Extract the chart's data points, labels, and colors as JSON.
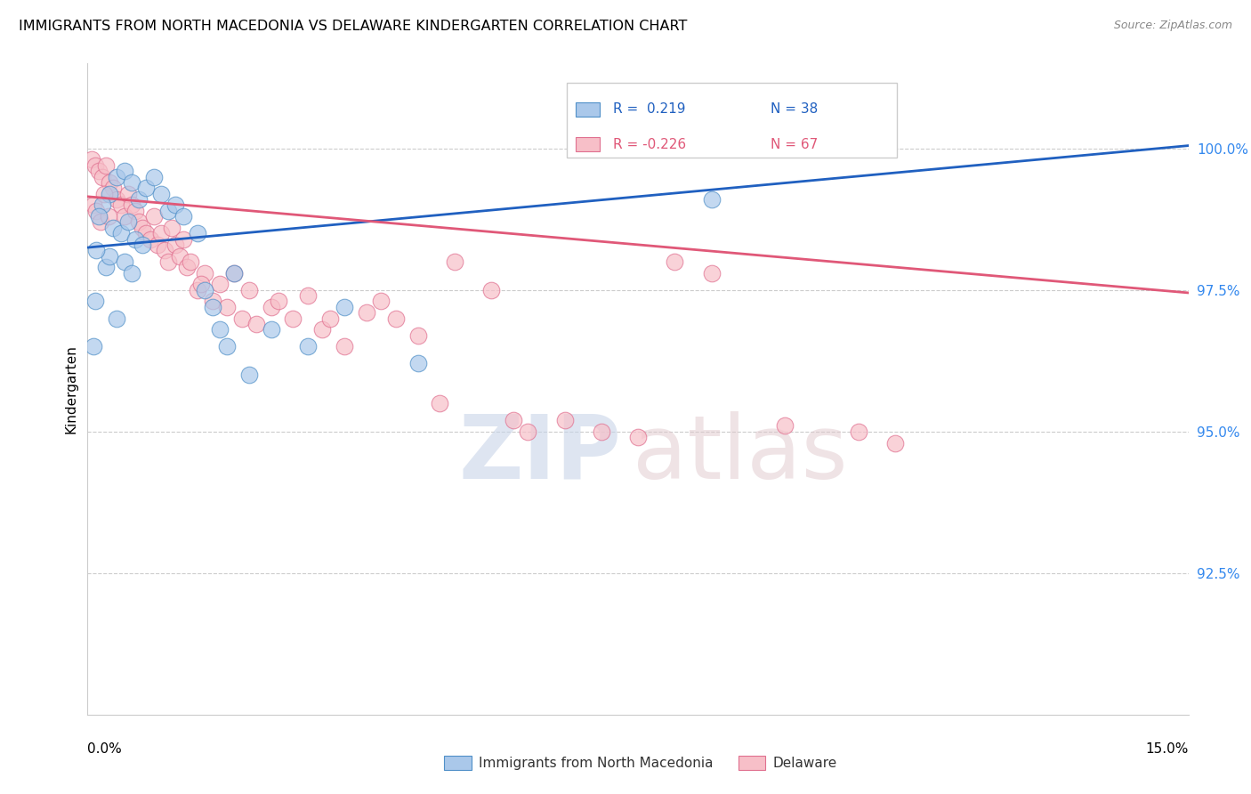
{
  "title": "IMMIGRANTS FROM NORTH MACEDONIA VS DELAWARE KINDERGARTEN CORRELATION CHART",
  "source": "Source: ZipAtlas.com",
  "ylabel": "Kindergarten",
  "xmin": 0.0,
  "xmax": 15.0,
  "ymin": 90.0,
  "ymax": 101.5,
  "yticks": [
    92.5,
    95.0,
    97.5,
    100.0
  ],
  "ytick_labels": [
    "92.5%",
    "95.0%",
    "97.5%",
    "100.0%"
  ],
  "legend_r_blue": "R =  0.219",
  "legend_n_blue": "N = 38",
  "legend_r_pink": "R = -0.226",
  "legend_n_pink": "N = 67",
  "legend_label_blue": "Immigrants from North Macedonia",
  "legend_label_pink": "Delaware",
  "blue_color": "#aac8ea",
  "pink_color": "#f7bfc8",
  "blue_edge_color": "#5090c8",
  "pink_edge_color": "#e07090",
  "blue_line_color": "#2060c0",
  "pink_line_color": "#e05878",
  "blue_scatter": [
    [
      0.3,
      99.2
    ],
    [
      0.4,
      99.5
    ],
    [
      0.5,
      99.6
    ],
    [
      0.6,
      99.4
    ],
    [
      0.7,
      99.1
    ],
    [
      0.8,
      99.3
    ],
    [
      0.9,
      99.5
    ],
    [
      1.0,
      99.2
    ],
    [
      1.1,
      98.9
    ],
    [
      1.2,
      99.0
    ],
    [
      0.2,
      99.0
    ],
    [
      0.15,
      98.8
    ],
    [
      0.35,
      98.6
    ],
    [
      0.45,
      98.5
    ],
    [
      0.55,
      98.7
    ],
    [
      0.65,
      98.4
    ],
    [
      0.75,
      98.3
    ],
    [
      0.25,
      97.9
    ],
    [
      0.3,
      98.1
    ],
    [
      0.5,
      98.0
    ],
    [
      0.6,
      97.8
    ],
    [
      1.3,
      98.8
    ],
    [
      1.5,
      98.5
    ],
    [
      1.6,
      97.5
    ],
    [
      1.7,
      97.2
    ],
    [
      2.0,
      97.8
    ],
    [
      2.5,
      96.8
    ],
    [
      3.0,
      96.5
    ],
    [
      3.5,
      97.2
    ],
    [
      0.1,
      97.3
    ],
    [
      0.08,
      96.5
    ],
    [
      1.8,
      96.8
    ],
    [
      1.9,
      96.5
    ],
    [
      2.2,
      96.0
    ],
    [
      4.5,
      96.2
    ],
    [
      8.5,
      99.1
    ],
    [
      0.12,
      98.2
    ],
    [
      0.4,
      97.0
    ]
  ],
  "pink_scatter": [
    [
      0.05,
      99.8
    ],
    [
      0.1,
      99.7
    ],
    [
      0.15,
      99.6
    ],
    [
      0.2,
      99.5
    ],
    [
      0.25,
      99.7
    ],
    [
      0.3,
      99.4
    ],
    [
      0.35,
      99.3
    ],
    [
      0.4,
      99.1
    ],
    [
      0.45,
      99.0
    ],
    [
      0.5,
      98.8
    ],
    [
      0.55,
      99.2
    ],
    [
      0.6,
      99.0
    ],
    [
      0.65,
      98.9
    ],
    [
      0.7,
      98.7
    ],
    [
      0.75,
      98.6
    ],
    [
      0.8,
      98.5
    ],
    [
      0.85,
      98.4
    ],
    [
      0.9,
      98.8
    ],
    [
      0.95,
      98.3
    ],
    [
      1.0,
      98.5
    ],
    [
      1.05,
      98.2
    ],
    [
      1.1,
      98.0
    ],
    [
      1.15,
      98.6
    ],
    [
      1.2,
      98.3
    ],
    [
      1.25,
      98.1
    ],
    [
      1.3,
      98.4
    ],
    [
      1.35,
      97.9
    ],
    [
      1.4,
      98.0
    ],
    [
      1.5,
      97.5
    ],
    [
      1.6,
      97.8
    ],
    [
      1.7,
      97.3
    ],
    [
      1.8,
      97.6
    ],
    [
      1.9,
      97.2
    ],
    [
      2.0,
      97.8
    ],
    [
      2.1,
      97.0
    ],
    [
      2.2,
      97.5
    ],
    [
      2.5,
      97.2
    ],
    [
      2.8,
      97.0
    ],
    [
      3.0,
      97.4
    ],
    [
      3.2,
      96.8
    ],
    [
      3.5,
      96.5
    ],
    [
      3.8,
      97.1
    ],
    [
      4.0,
      97.3
    ],
    [
      4.2,
      97.0
    ],
    [
      4.5,
      96.7
    ],
    [
      5.0,
      98.0
    ],
    [
      5.5,
      97.5
    ],
    [
      6.0,
      95.0
    ],
    [
      6.5,
      95.2
    ],
    [
      7.0,
      95.0
    ],
    [
      7.5,
      94.9
    ],
    [
      8.0,
      98.0
    ],
    [
      8.5,
      97.8
    ],
    [
      0.08,
      99.0
    ],
    [
      0.12,
      98.9
    ],
    [
      0.18,
      98.7
    ],
    [
      0.22,
      99.2
    ],
    [
      0.28,
      98.8
    ],
    [
      1.55,
      97.6
    ],
    [
      2.3,
      96.9
    ],
    [
      2.6,
      97.3
    ],
    [
      3.3,
      97.0
    ],
    [
      4.8,
      95.5
    ],
    [
      5.8,
      95.2
    ],
    [
      9.5,
      95.1
    ],
    [
      10.5,
      95.0
    ],
    [
      11.0,
      94.8
    ]
  ],
  "blue_line": [
    [
      0.0,
      98.25
    ],
    [
      15.0,
      100.05
    ]
  ],
  "pink_line": [
    [
      0.0,
      99.15
    ],
    [
      15.0,
      97.45
    ]
  ]
}
